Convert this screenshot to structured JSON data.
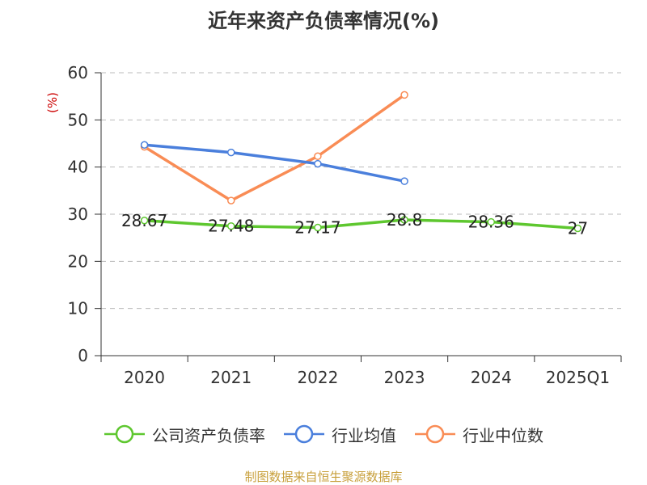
{
  "title": "近年来资产负债率情况(%)",
  "chart_data": {
    "type": "line",
    "title": "近年来资产负债率情况(%)",
    "ylabel": "(%)",
    "categories": [
      "2020",
      "2021",
      "2022",
      "2023",
      "2024",
      "2025Q1"
    ],
    "ylim": [
      0,
      60
    ],
    "yticks": [
      0,
      10,
      20,
      30,
      40,
      50,
      60
    ],
    "grid": true,
    "legend_position": "bottom",
    "series": [
      {
        "name": "公司资产负债率",
        "color": "#5ec72f",
        "values": [
          28.67,
          27.48,
          27.17,
          28.8,
          28.36,
          27
        ],
        "labels": [
          "28.67",
          "27.48",
          "27.17",
          "28.8",
          "28.36",
          "27"
        ]
      },
      {
        "name": "行业均值",
        "color": "#4a7fdc",
        "values": [
          44.7,
          43.1,
          40.7,
          37.0,
          null,
          null
        ]
      },
      {
        "name": "行业中位数",
        "color": "#f98c55",
        "values": [
          44.3,
          32.9,
          42.3,
          55.3,
          null,
          null
        ]
      }
    ]
  },
  "source": "制图数据来自恒生聚源数据库"
}
